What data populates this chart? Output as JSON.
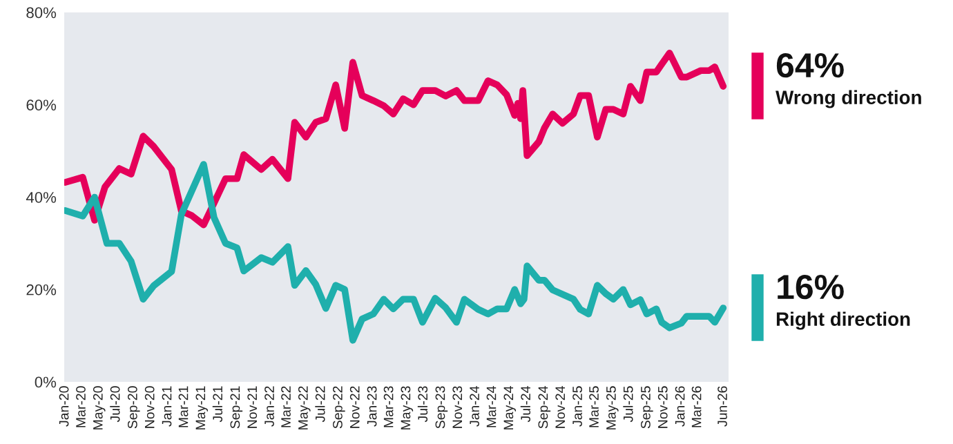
{
  "chart_data": {
    "type": "line",
    "ylim": [
      0,
      80
    ],
    "yticks": [
      {
        "value": 0,
        "label": "0%"
      },
      {
        "value": 20,
        "label": "20%"
      },
      {
        "value": 40,
        "label": "40%"
      },
      {
        "value": 60,
        "label": "60%"
      },
      {
        "value": 80,
        "label": "80%"
      }
    ],
    "xlim": [
      "2019-12-29",
      "2026-06-19"
    ],
    "xticks": [
      {
        "value": "2020-01-01",
        "label": "Jan-20"
      },
      {
        "value": "2020-03-01",
        "label": "Mar-20"
      },
      {
        "value": "2020-05-01",
        "label": "May-20"
      },
      {
        "value": "2020-07-01",
        "label": "Jul-20"
      },
      {
        "value": "2020-09-01",
        "label": "Sep-20"
      },
      {
        "value": "2020-11-01",
        "label": "Nov-20"
      },
      {
        "value": "2021-01-01",
        "label": "Jan-21"
      },
      {
        "value": "2021-03-01",
        "label": "Mar-21"
      },
      {
        "value": "2021-05-01",
        "label": "May-21"
      },
      {
        "value": "2021-07-01",
        "label": "Jul-21"
      },
      {
        "value": "2021-09-01",
        "label": "Sep-21"
      },
      {
        "value": "2021-11-01",
        "label": "Nov-21"
      },
      {
        "value": "2022-01-01",
        "label": "Jan-22"
      },
      {
        "value": "2022-03-01",
        "label": "Mar-22"
      },
      {
        "value": "2022-05-01",
        "label": "May-22"
      },
      {
        "value": "2022-07-01",
        "label": "Jul-22"
      },
      {
        "value": "2022-09-01",
        "label": "Sep-22"
      },
      {
        "value": "2022-11-01",
        "label": "Nov-22"
      },
      {
        "value": "2023-01-01",
        "label": "Jan-23"
      },
      {
        "value": "2023-03-01",
        "label": "Mar-23"
      },
      {
        "value": "2023-05-01",
        "label": "May-23"
      },
      {
        "value": "2023-07-01",
        "label": "Jul-23"
      },
      {
        "value": "2023-09-01",
        "label": "Sep-23"
      },
      {
        "value": "2023-11-01",
        "label": "Nov-23"
      },
      {
        "value": "2024-01-01",
        "label": "Jan-24"
      },
      {
        "value": "2024-03-01",
        "label": "Mar-24"
      },
      {
        "value": "2024-05-01",
        "label": "May-24"
      },
      {
        "value": "2024-07-01",
        "label": "Jul-24"
      },
      {
        "value": "2024-09-01",
        "label": "Sep-24"
      },
      {
        "value": "2024-11-01",
        "label": "Nov-24"
      },
      {
        "value": "2025-01-01",
        "label": "Jan-25"
      },
      {
        "value": "2025-03-01",
        "label": "Mar-25"
      },
      {
        "value": "2025-05-01",
        "label": "May-25"
      },
      {
        "value": "2025-07-01",
        "label": "Jul-25"
      },
      {
        "value": "2025-09-01",
        "label": "Sep-25"
      },
      {
        "value": "2025-11-01",
        "label": "Nov-25"
      },
      {
        "value": "2026-01-01",
        "label": "Jan-26"
      },
      {
        "value": "2026-03-01",
        "label": "Mar-26"
      },
      {
        "value": "2026-06-01",
        "label": "Jun-26"
      }
    ],
    "annotations": [
      "64%",
      "16%"
    ],
    "grid": false,
    "legend": false,
    "series": [
      {
        "name": "Wrong direction",
        "color": "#e5005a",
        "x": [
          "2020-01-01",
          "2020-03-04",
          "2020-04-15",
          "2020-05-22",
          "2020-07-12",
          "2020-08-23",
          "2020-10-05",
          "2020-11-11",
          "2021-01-14",
          "2021-02-18",
          "2021-03-27",
          "2021-05-08",
          "2021-06-14",
          "2021-07-25",
          "2021-09-04",
          "2021-09-28",
          "2021-11-29",
          "2022-01-08",
          "2022-03-04",
          "2022-03-28",
          "2022-05-07",
          "2022-06-11",
          "2022-07-17",
          "2022-08-21",
          "2022-09-22",
          "2022-10-21",
          "2022-11-23",
          "2023-01-02",
          "2023-02-08",
          "2023-03-14",
          "2023-04-18",
          "2023-05-25",
          "2023-06-26",
          "2023-08-10",
          "2023-09-16",
          "2023-10-25",
          "2023-11-22",
          "2024-01-10",
          "2024-02-14",
          "2024-03-18",
          "2024-04-20",
          "2024-05-19",
          "2024-05-30",
          "2024-06-09",
          "2024-06-17",
          "2024-07-02",
          "2024-08-13",
          "2024-09-02",
          "2024-10-01",
          "2024-11-05",
          "2024-12-14",
          "2025-01-07",
          "2025-02-06",
          "2025-03-09",
          "2025-04-08",
          "2025-05-05",
          "2025-06-09",
          "2025-07-05",
          "2025-08-09",
          "2025-09-01",
          "2025-10-05",
          "2025-10-24",
          "2025-11-21",
          "2026-01-02",
          "2026-01-21",
          "2026-03-12",
          "2026-04-11",
          "2026-05-01",
          "2026-05-31"
        ],
        "values": [
          43.2,
          44.3,
          35,
          42.2,
          46.2,
          45,
          53.2,
          51,
          46,
          37,
          36,
          34,
          38.7,
          44,
          44,
          49.2,
          46,
          48.2,
          44,
          56.2,
          53,
          56.2,
          57,
          64.3,
          54.9,
          69.2,
          62,
          60.9,
          59.8,
          58,
          61.3,
          60,
          63.1,
          63.1,
          61.9,
          63.1,
          60.9,
          60.9,
          65.2,
          64.3,
          62.2,
          57.7,
          60.3,
          57,
          63.1,
          49,
          52,
          55,
          58,
          56,
          58,
          62,
          62,
          53,
          59,
          59,
          58,
          64,
          60.9,
          67.1,
          67.1,
          68.8,
          71.2,
          66,
          66,
          67.4,
          67.4,
          68.2,
          64
        ],
        "value_labels": [
          null,
          null,
          null,
          null,
          null,
          null,
          null,
          null,
          null,
          null,
          null,
          null,
          null,
          null,
          null,
          null,
          null,
          null,
          null,
          null,
          null,
          null,
          null,
          null,
          null,
          null,
          null,
          null,
          null,
          null,
          null,
          null,
          null,
          null,
          null,
          null,
          null,
          null,
          null,
          null,
          null,
          null,
          null,
          null,
          null,
          null,
          null,
          null,
          null,
          null,
          null,
          null,
          null,
          null,
          null,
          null,
          null,
          null,
          null,
          null,
          null,
          null,
          null,
          null,
          null,
          null,
          null,
          null,
          null
        ]
      },
      {
        "name": "Right direction",
        "color": "#1fafac",
        "x": [
          "2020-01-01",
          "2020-03-04",
          "2020-04-15",
          "2020-05-29",
          "2020-07-12",
          "2020-08-23",
          "2020-10-05",
          "2020-11-11",
          "2021-01-14",
          "2021-02-18",
          "2021-05-08",
          "2021-06-14",
          "2021-07-25",
          "2021-09-04",
          "2021-09-28",
          "2021-11-29",
          "2022-01-08",
          "2022-03-04",
          "2022-03-28",
          "2022-05-07",
          "2022-06-11",
          "2022-07-17",
          "2022-08-21",
          "2022-09-22",
          "2022-10-21",
          "2022-11-23",
          "2023-01-02",
          "2023-02-08",
          "2023-03-14",
          "2023-04-18",
          "2023-05-25",
          "2023-06-26",
          "2023-08-10",
          "2023-09-16",
          "2023-10-25",
          "2023-11-22",
          "2024-01-10",
          "2024-02-14",
          "2024-03-18",
          "2024-04-20",
          "2024-05-19",
          "2024-06-09",
          "2024-06-21",
          "2024-07-02",
          "2024-08-13",
          "2024-09-02",
          "2024-10-01",
          "2024-12-14",
          "2025-01-07",
          "2025-02-06",
          "2025-03-09",
          "2025-04-08",
          "2025-05-05",
          "2025-06-09",
          "2025-07-05",
          "2025-08-09",
          "2025-09-01",
          "2025-10-05",
          "2025-10-24",
          "2025-11-21",
          "2026-01-02",
          "2026-01-21",
          "2026-04-11",
          "2026-05-01",
          "2026-05-31"
        ],
        "values": [
          37.1,
          35.9,
          40,
          30,
          30,
          26.1,
          17.9,
          20.8,
          23.9,
          36.3,
          47.1,
          35.6,
          30,
          29,
          24,
          26.9,
          25.9,
          29.3,
          20.9,
          24.1,
          21.1,
          15.9,
          20.9,
          20,
          9,
          13.6,
          14.7,
          17.9,
          15.8,
          17.9,
          17.9,
          12.9,
          18.1,
          16.1,
          12.9,
          17.9,
          15.7,
          14.7,
          15.8,
          15.8,
          20,
          16.9,
          17.9,
          25.1,
          22,
          22,
          19.9,
          17.9,
          15.7,
          14.7,
          20.9,
          19.1,
          17.9,
          20,
          16.7,
          17.8,
          14.7,
          15.8,
          12.9,
          11.7,
          12.7,
          14.2,
          14.2,
          12.9,
          16
        ],
        "value_labels": [
          null,
          null,
          null,
          null,
          null,
          null,
          null,
          null,
          null,
          null,
          null,
          null,
          null,
          null,
          null,
          null,
          null,
          null,
          null,
          null,
          null,
          null,
          null,
          null,
          null,
          null,
          null,
          null,
          null,
          null,
          null,
          null,
          null,
          null,
          null,
          null,
          null,
          null,
          null,
          null,
          null,
          null,
          null,
          null,
          null,
          null,
          null,
          null,
          null,
          null,
          null,
          null,
          null,
          null,
          null,
          null,
          null,
          null,
          null,
          null,
          null,
          null,
          null,
          null,
          null
        ]
      }
    ]
  }
}
